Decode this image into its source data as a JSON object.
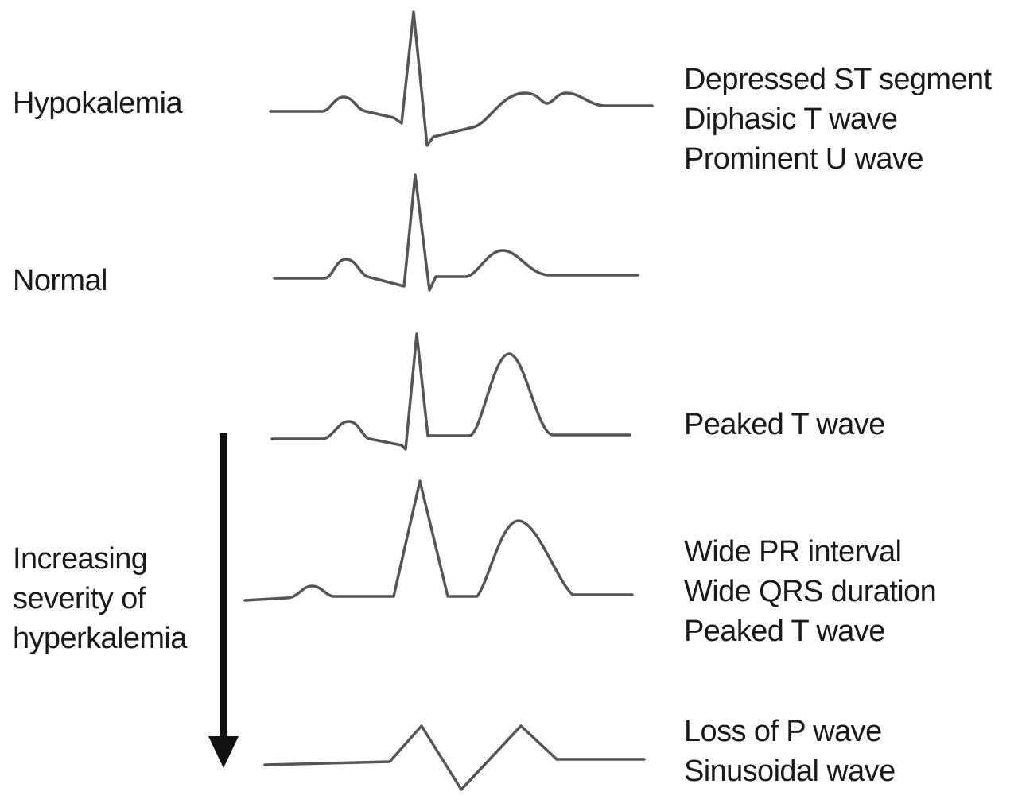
{
  "rows": [
    {
      "label": "Hypokalemia",
      "findings": [
        "Depressed ST segment",
        "Diphasic T wave",
        "Prominent U wave"
      ]
    },
    {
      "label": "Normal"
    },
    {
      "findings": [
        "Peaked T wave"
      ]
    },
    {
      "findings": [
        "Wide PR interval",
        "Wide QRS duration",
        "Peaked T wave"
      ]
    },
    {
      "findings": [
        "Loss of P wave",
        "Sinusoidal wave"
      ]
    }
  ],
  "severity_label": [
    "Increasing",
    "severity of",
    "hyperkalemia"
  ]
}
